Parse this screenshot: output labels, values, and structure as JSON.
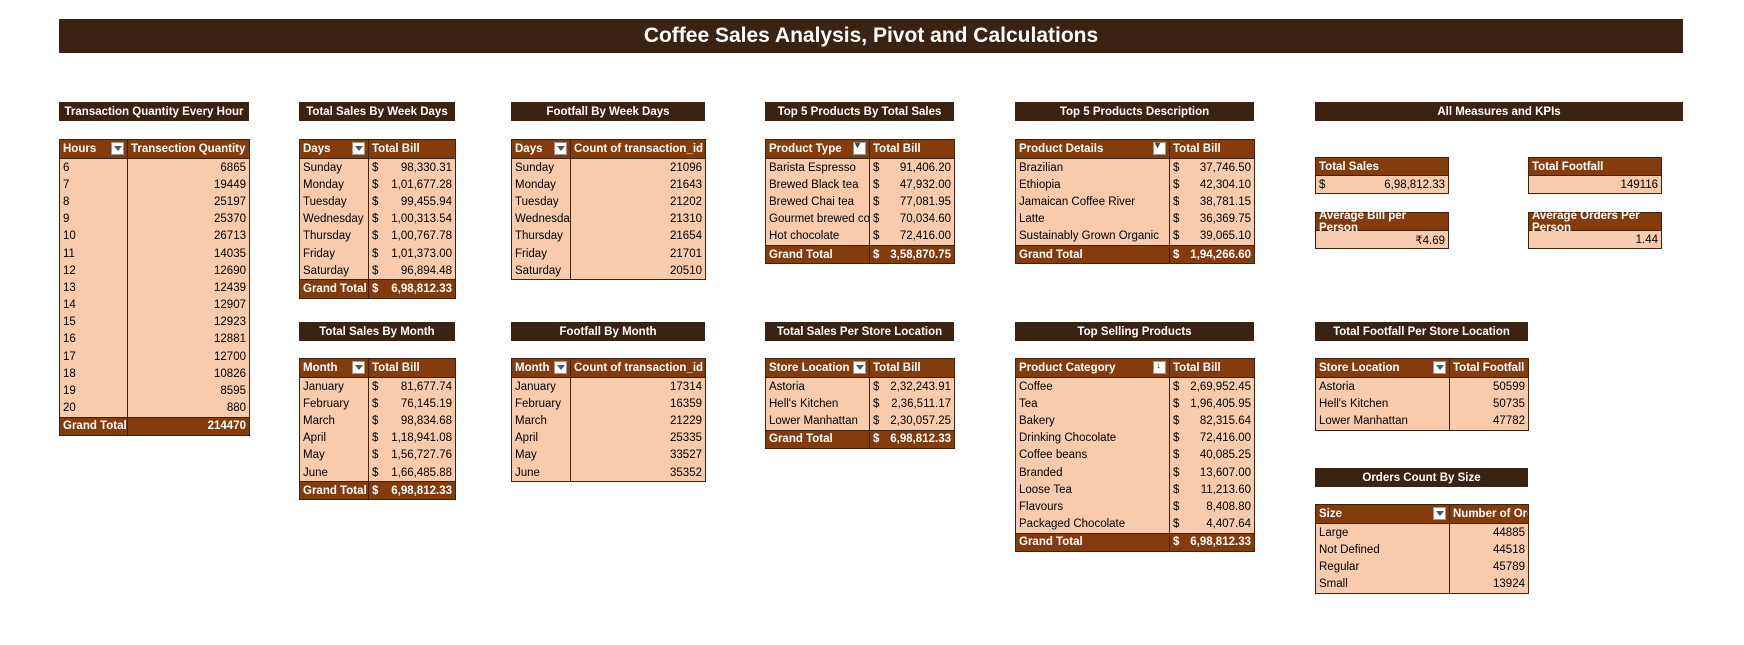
{
  "title": "Coffee Sales Analysis, Pivot and Calculations",
  "hourly": {
    "title": "Transaction Quantity Every Hour",
    "headers": [
      "Hours",
      "Transection Quantity"
    ],
    "rows": [
      [
        "6",
        "6865"
      ],
      [
        "7",
        "19449"
      ],
      [
        "8",
        "25197"
      ],
      [
        "9",
        "25370"
      ],
      [
        "10",
        "26713"
      ],
      [
        "11",
        "14035"
      ],
      [
        "12",
        "12690"
      ],
      [
        "13",
        "12439"
      ],
      [
        "14",
        "12907"
      ],
      [
        "15",
        "12923"
      ],
      [
        "16",
        "12881"
      ],
      [
        "17",
        "12700"
      ],
      [
        "18",
        "10826"
      ],
      [
        "19",
        "8595"
      ],
      [
        "20",
        "880"
      ]
    ],
    "total": [
      "Grand Total",
      "214470"
    ]
  },
  "weekday_sales": {
    "title": "Total Sales By Week Days",
    "headers": [
      "Days",
      "Total Bill"
    ],
    "rows": [
      [
        "Sunday",
        "98,330.31"
      ],
      [
        "Monday",
        "1,01,677.28"
      ],
      [
        "Tuesday",
        "99,455.94"
      ],
      [
        "Wednesday",
        "1,00,313.54"
      ],
      [
        "Thursday",
        "1,00,767.78"
      ],
      [
        "Friday",
        "1,01,373.00"
      ],
      [
        "Saturday",
        "96,894.48"
      ]
    ],
    "total": [
      "Grand Total",
      "6,98,812.33"
    ]
  },
  "month_sales": {
    "title": "Total Sales By Month",
    "headers": [
      "Month",
      "Total Bill"
    ],
    "rows": [
      [
        "January",
        "81,677.74"
      ],
      [
        "February",
        "76,145.19"
      ],
      [
        "March",
        "98,834.68"
      ],
      [
        "April",
        "1,18,941.08"
      ],
      [
        "May",
        "1,56,727.76"
      ],
      [
        "June",
        "1,66,485.88"
      ]
    ],
    "total": [
      "Grand Total",
      "6,98,812.33"
    ]
  },
  "weekday_footfall": {
    "title": "Footfall By Week Days",
    "headers": [
      "Days",
      "Count of transaction_id"
    ],
    "rows": [
      [
        "Sunday",
        "21096"
      ],
      [
        "Monday",
        "21643"
      ],
      [
        "Tuesday",
        "21202"
      ],
      [
        "Wednesda",
        "21310"
      ],
      [
        "Thursday",
        "21654"
      ],
      [
        "Friday",
        "21701"
      ],
      [
        "Saturday",
        "20510"
      ]
    ]
  },
  "month_footfall": {
    "title": "Footfall By Month",
    "headers": [
      "Month",
      "Count of transaction_id"
    ],
    "rows": [
      [
        "January",
        "17314"
      ],
      [
        "February",
        "16359"
      ],
      [
        "March",
        "21229"
      ],
      [
        "April",
        "25335"
      ],
      [
        "May",
        "33527"
      ],
      [
        "June",
        "35352"
      ]
    ]
  },
  "top5_types": {
    "title": "Top 5 Products By Total Sales",
    "headers": [
      "Product Type",
      "Total Bill"
    ],
    "rows": [
      [
        "Barista Espresso",
        "91,406.20"
      ],
      [
        "Brewed Black tea",
        "47,932.00"
      ],
      [
        "Brewed Chai tea",
        "77,081.95"
      ],
      [
        "Gourmet brewed coffee",
        "70,034.60"
      ],
      [
        "Hot chocolate",
        "72,416.00"
      ]
    ],
    "total": [
      "Grand Total",
      "3,58,870.75"
    ]
  },
  "store_sales": {
    "title": "Total Sales Per Store Location",
    "headers": [
      "Store Location",
      "Total Bill"
    ],
    "rows": [
      [
        "Astoria",
        "2,32,243.91"
      ],
      [
        "Hell's Kitchen",
        "2,36,511.17"
      ],
      [
        "Lower Manhattan",
        "2,30,057.25"
      ]
    ],
    "total": [
      "Grand Total",
      "6,98,812.33"
    ]
  },
  "top5_details": {
    "title": "Top 5 Products Description",
    "headers": [
      "Product Details",
      "Total Bill"
    ],
    "rows": [
      [
        "Brazilian",
        "37,746.50"
      ],
      [
        "Ethiopia",
        "42,304.10"
      ],
      [
        "Jamaican Coffee River",
        "38,781.15"
      ],
      [
        "Latte",
        "36,369.75"
      ],
      [
        "Sustainably Grown Organic",
        "39,065.10"
      ]
    ],
    "total": [
      "Grand Total",
      "1,94,266.60"
    ]
  },
  "top_categories": {
    "title": "Top Selling Products",
    "headers": [
      "Product Category",
      "Total Bill"
    ],
    "rows": [
      [
        "Coffee",
        "2,69,952.45"
      ],
      [
        "Tea",
        "1,96,405.95"
      ],
      [
        "Bakery",
        "82,315.64"
      ],
      [
        "Drinking Chocolate",
        "72,416.00"
      ],
      [
        "Coffee beans",
        "40,085.25"
      ],
      [
        "Branded",
        "13,607.00"
      ],
      [
        "Loose Tea",
        "11,213.60"
      ],
      [
        "Flavours",
        "8,408.80"
      ],
      [
        "Packaged Chocolate",
        "4,407.64"
      ]
    ],
    "total": [
      "Grand Total",
      "6,98,812.33"
    ]
  },
  "kpis": {
    "title": "All Measures and KPIs",
    "total_sales_label": "Total Sales",
    "total_sales_symbol": "$",
    "total_sales_value": "6,98,812.33",
    "total_footfall_label": "Total Footfall",
    "total_footfall_value": "149116",
    "avg_bill_label": "Average Bill per Person",
    "avg_bill_value": "₹4.69",
    "avg_orders_label": "Average Orders Per Person",
    "avg_orders_value": "1.44"
  },
  "store_footfall": {
    "title": "Total Footfall Per Store Location",
    "headers": [
      "Store Location",
      "Total Footfall"
    ],
    "rows": [
      [
        "Astoria",
        "50599"
      ],
      [
        "Hell's Kitchen",
        "50735"
      ],
      [
        "Lower Manhattan",
        "47782"
      ]
    ]
  },
  "size_orders": {
    "title": "Orders Count By Size",
    "headers": [
      "Size",
      "Number of Orders"
    ],
    "rows": [
      [
        "Large",
        "44885"
      ],
      [
        "Not Defined",
        "44518"
      ],
      [
        "Regular",
        "45789"
      ],
      [
        "Small",
        "13924"
      ]
    ]
  },
  "currency_symbol": "$",
  "colors": {
    "dark": "#3b2313",
    "header": "#843c0c",
    "cell": "#f8cbad"
  }
}
